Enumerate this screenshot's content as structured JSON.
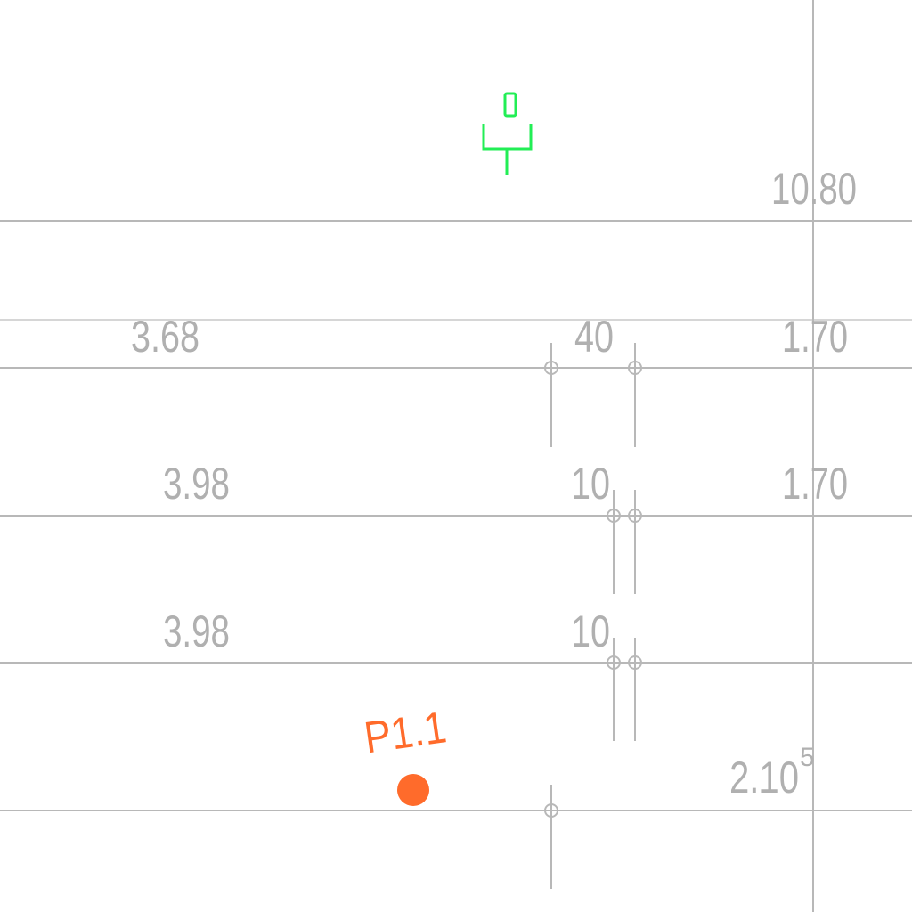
{
  "colors": {
    "background": "#ffffff",
    "grid_line": "#b8b8b8",
    "dimension_text": "#b0b0b0",
    "marker": "#ff6b2b",
    "symbol": "#22ee55"
  },
  "dimensions": {
    "top_right": "10.80",
    "row1_left": "3.68",
    "row1_mid": "40",
    "row1_right": "1.70",
    "row2_left": "3.98",
    "row2_mid": "10",
    "row2_right": "1.70",
    "row3_left": "3.98",
    "row3_mid": "10",
    "bottom_right": "2.10",
    "bottom_right_superscript": "5"
  },
  "marker": {
    "label": "P1.1",
    "icon": "filled-circle"
  },
  "symbol": {
    "icon": "green-fixture-symbol"
  }
}
